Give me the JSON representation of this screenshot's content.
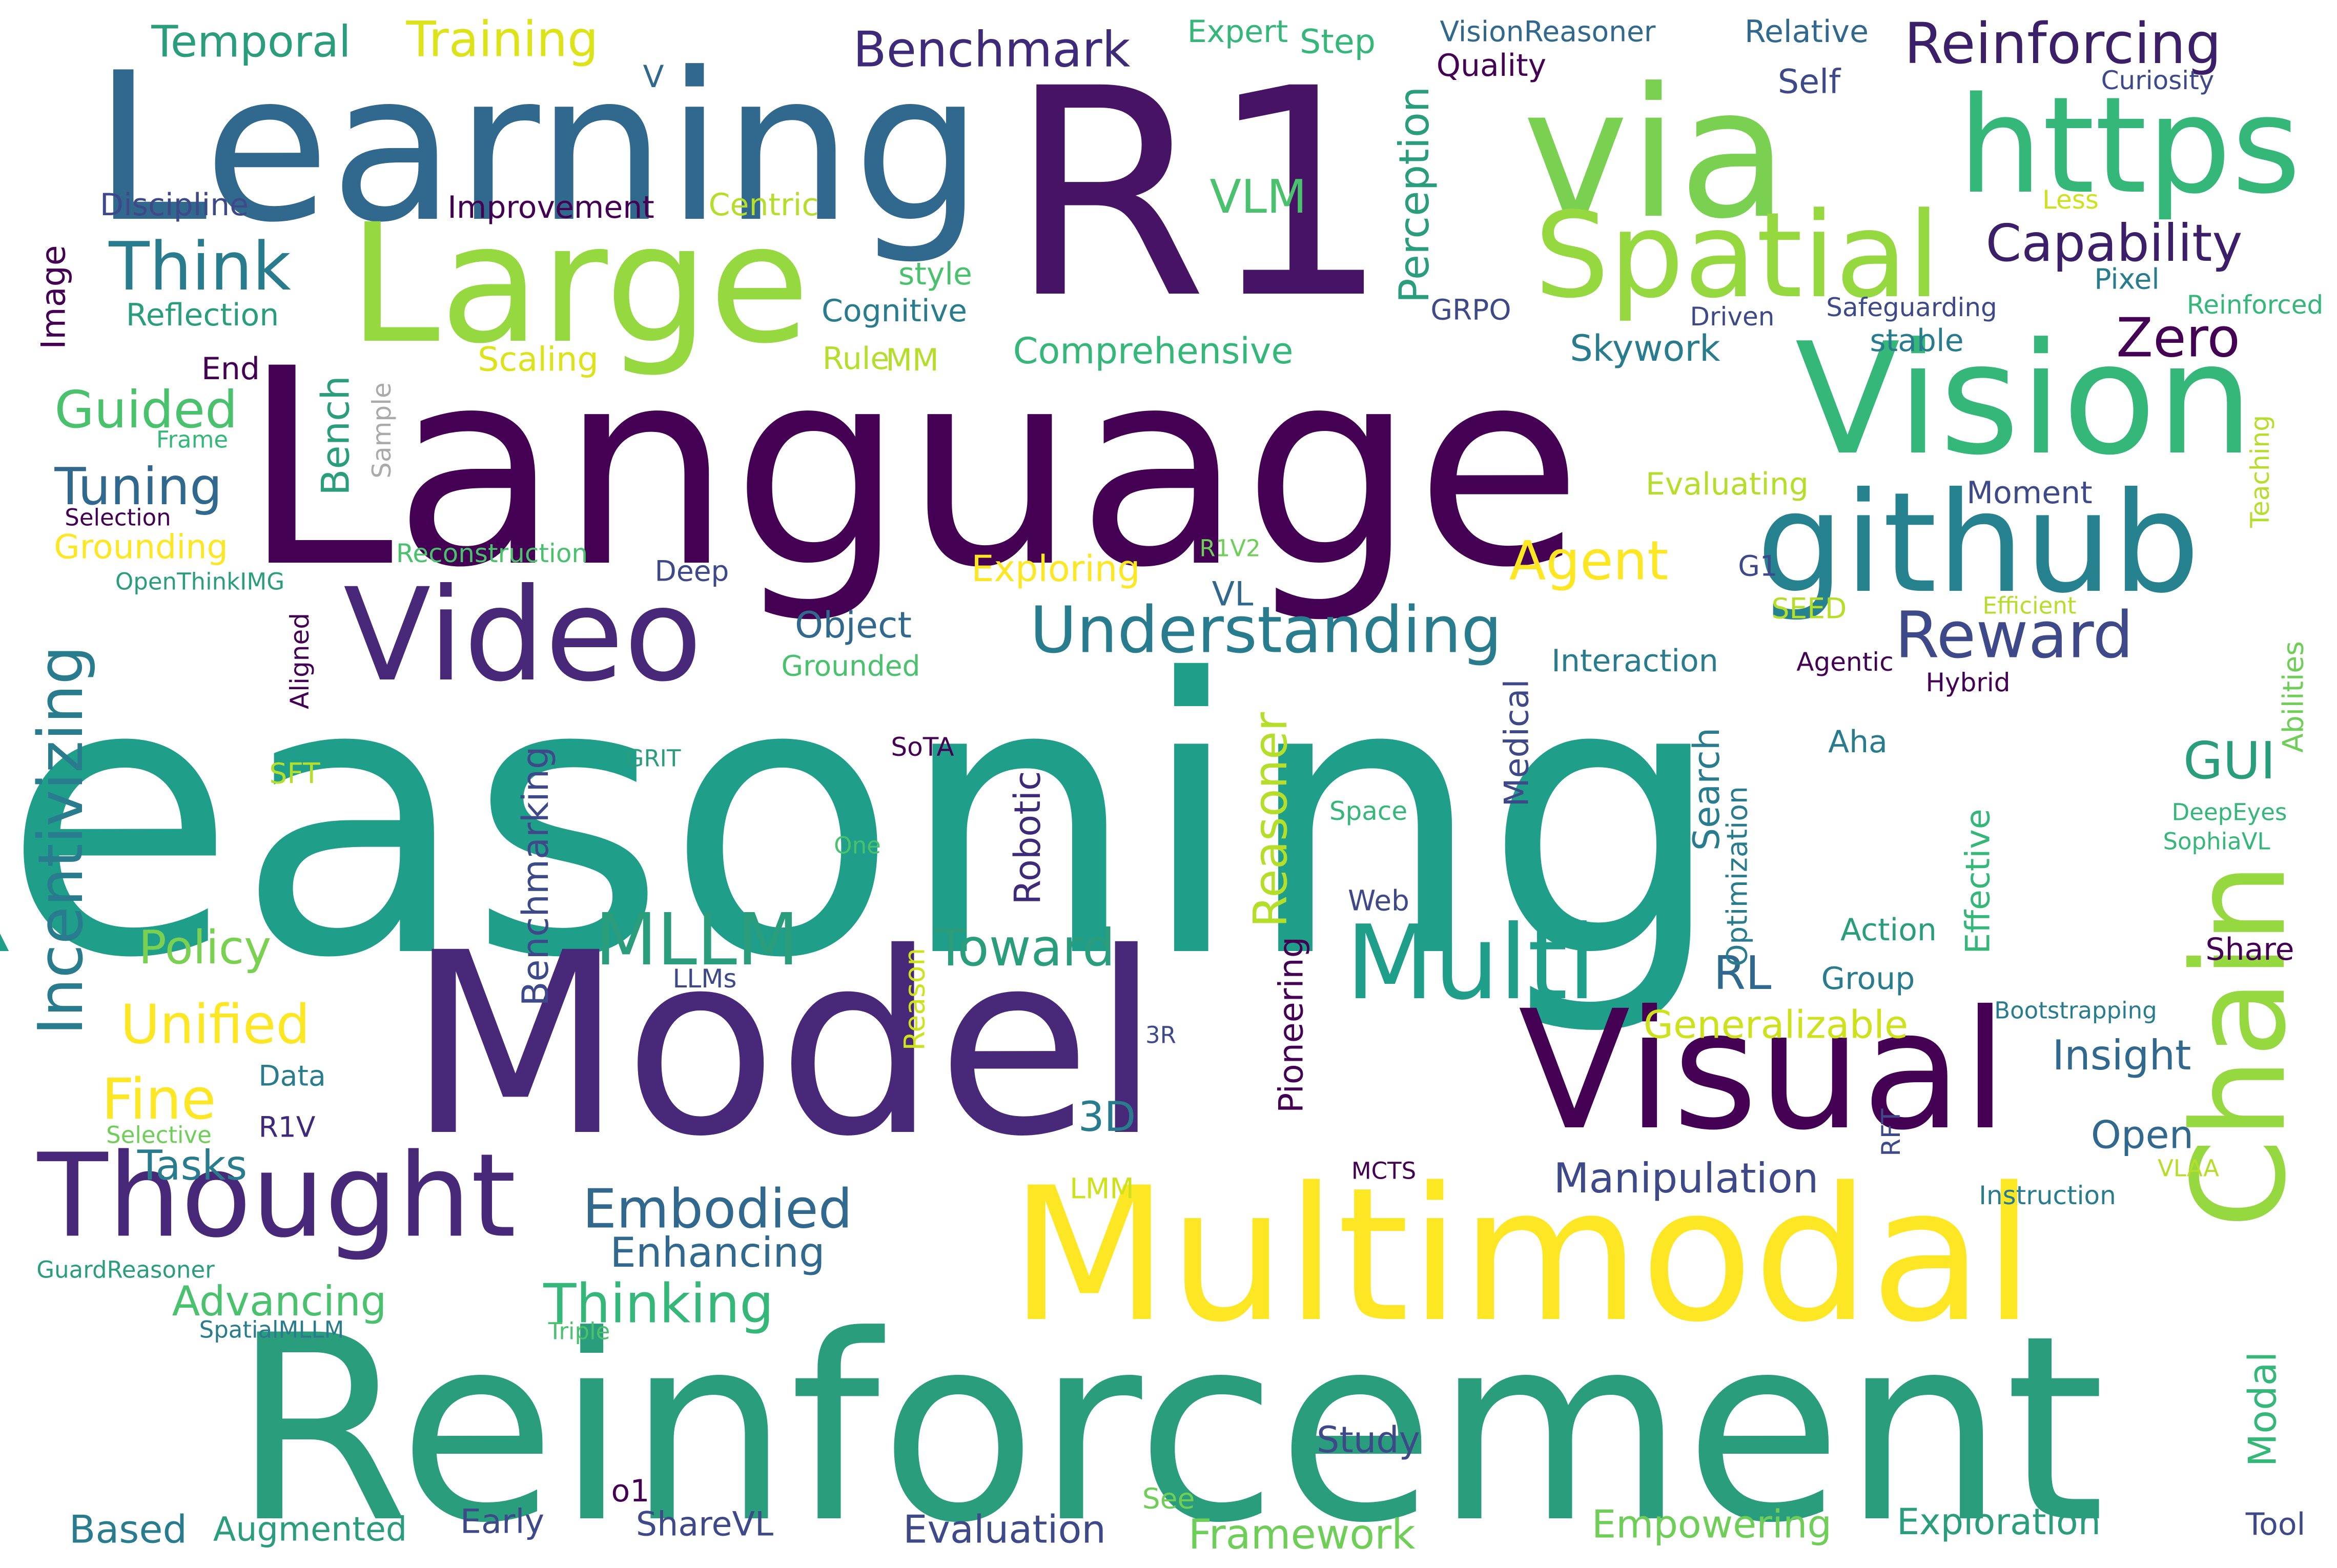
{
  "palette": {
    "dark_purple": "#440154",
    "purple": "#482878",
    "indigo": "#3e4989",
    "blue": "#31688e",
    "teal_blue": "#26828e",
    "teal": "#1f9e89",
    "green": "#35b779",
    "light_green": "#6ece58",
    "lime": "#b5de2b",
    "yellow": "#fde725"
  },
  "words": [
    {
      "text": "Reasoning",
      "color": "#1f9e89"
    },
    {
      "text": "Language",
      "color": "#440154"
    },
    {
      "text": "Model",
      "color": "#482878"
    },
    {
      "text": "Reinforcement",
      "color": "#2a9d7c"
    },
    {
      "text": "Multimodal",
      "color": "#fde725"
    },
    {
      "text": "R1",
      "color": "#471465"
    },
    {
      "text": "Learning",
      "color": "#31688e"
    },
    {
      "text": "via",
      "color": "#7ad151"
    },
    {
      "text": "https",
      "color": "#35b779"
    },
    {
      "text": "Vision",
      "color": "#35b779"
    },
    {
      "text": "Visual",
      "color": "#440154"
    },
    {
      "text": "Large",
      "color": "#95d840"
    },
    {
      "text": "Spatial",
      "color": "#95d840"
    },
    {
      "text": "github",
      "color": "#26828e"
    },
    {
      "text": "Video",
      "color": "#482878"
    },
    {
      "text": "Chain",
      "color": "#95d840"
    },
    {
      "text": "Thought",
      "color": "#482878"
    },
    {
      "text": "Multi",
      "color": "#1f9e89"
    },
    {
      "text": "MLLM",
      "color": "#2a9d7c"
    },
    {
      "text": "Understanding",
      "color": "#287c8e"
    },
    {
      "text": "Reward",
      "color": "#3e4989"
    },
    {
      "text": "Incentivizing",
      "color": "#287c8e"
    },
    {
      "text": "Think",
      "color": "#287c8e"
    },
    {
      "text": "Training",
      "color": "#dce319"
    },
    {
      "text": "Temporal",
      "color": "#2a9d7c"
    },
    {
      "text": "Benchmark",
      "color": "#3e2a78"
    },
    {
      "text": "Reinforcing",
      "color": "#3b1f68"
    },
    {
      "text": "Capability",
      "color": "#3b1f68"
    },
    {
      "text": "Embodied",
      "color": "#31688e"
    },
    {
      "text": "Thinking",
      "color": "#35b779"
    },
    {
      "text": "Zero",
      "color": "#440154"
    },
    {
      "text": "Agent",
      "color": "#fde725"
    },
    {
      "text": "Unified",
      "color": "#fde725"
    },
    {
      "text": "Fine",
      "color": "#fde725"
    },
    {
      "text": "Guided",
      "color": "#4ac16d"
    },
    {
      "text": "Tuning",
      "color": "#31688e"
    },
    {
      "text": "Policy",
      "color": "#7ad151"
    },
    {
      "text": "Toward",
      "color": "#2a9d7c"
    },
    {
      "text": "GUI",
      "color": "#2a9d7c"
    },
    {
      "text": "VLM",
      "color": "#4ac16d"
    },
    {
      "text": "Perception",
      "color": "#2a9d7c"
    },
    {
      "text": "Reasoner",
      "color": "#b5de2b"
    },
    {
      "text": "Generalizable",
      "color": "#cde11d"
    },
    {
      "text": "Manipulation",
      "color": "#3e4989"
    },
    {
      "text": "Enhancing",
      "color": "#31688e"
    },
    {
      "text": "Advancing",
      "color": "#4ac16d"
    },
    {
      "text": "Tasks",
      "color": "#287c8e"
    },
    {
      "text": "3D",
      "color": "#287c8e"
    },
    {
      "text": "RL",
      "color": "#31688e"
    },
    {
      "text": "Insight",
      "color": "#31688e"
    },
    {
      "text": "Open",
      "color": "#31688e"
    },
    {
      "text": "Framework",
      "color": "#6ece58"
    },
    {
      "text": "Evaluation",
      "color": "#3e4989"
    },
    {
      "text": "Empowering",
      "color": "#6ece58"
    },
    {
      "text": "Exploration",
      "color": "#2a9d7c"
    },
    {
      "text": "Study",
      "color": "#3e4989"
    },
    {
      "text": "Based",
      "color": "#287c8e"
    },
    {
      "text": "Augmented",
      "color": "#2a9d7c"
    },
    {
      "text": "Early",
      "color": "#3e4989"
    },
    {
      "text": "ShareVL",
      "color": "#3e4989"
    },
    {
      "text": "o1",
      "color": "#440154"
    },
    {
      "text": "See",
      "color": "#6ece58"
    },
    {
      "text": "Tool",
      "color": "#3e4989"
    },
    {
      "text": "Modal",
      "color": "#35b779"
    },
    {
      "text": "Effective",
      "color": "#35b779"
    },
    {
      "text": "Benchmarking",
      "color": "#3e4989"
    },
    {
      "text": "Pioneering",
      "color": "#440154"
    },
    {
      "text": "Robotic",
      "color": "#3e2a78"
    },
    {
      "text": "Medical",
      "color": "#3e4989"
    },
    {
      "text": "Search",
      "color": "#287c8e"
    },
    {
      "text": "Optimization",
      "color": "#287c8e"
    },
    {
      "text": "Bench",
      "color": "#2a9d7c"
    },
    {
      "text": "Image",
      "color": "#440154"
    },
    {
      "text": "Sample",
      "color": "#aaaaaa"
    },
    {
      "text": "Aligned",
      "color": "#440154"
    },
    {
      "text": "Reason",
      "color": "#cde11d"
    },
    {
      "text": "Abilities",
      "color": "#6ece58"
    },
    {
      "text": "Teaching",
      "color": "#b5de2b"
    },
    {
      "text": "RFT",
      "color": "#3e4989"
    },
    {
      "text": "V",
      "color": "#31688e"
    },
    {
      "text": "Expert",
      "color": "#35b779"
    },
    {
      "text": "Step",
      "color": "#35b779"
    },
    {
      "text": "VisionReasoner",
      "color": "#31688e"
    },
    {
      "text": "Relative",
      "color": "#31688e"
    },
    {
      "text": "Quality",
      "color": "#440154"
    },
    {
      "text": "Self",
      "color": "#3e4989"
    },
    {
      "text": "Curiosity",
      "color": "#3e4989"
    },
    {
      "text": "Discipline",
      "color": "#3e4989"
    },
    {
      "text": "Improvement",
      "color": "#440154"
    },
    {
      "text": "Centric",
      "color": "#b5de2b"
    },
    {
      "text": "Less",
      "color": "#cde11d"
    },
    {
      "text": "Reflection",
      "color": "#2a9d7c"
    },
    {
      "text": "style",
      "color": "#4ac16d"
    },
    {
      "text": "Cognitive",
      "color": "#287c8e"
    },
    {
      "text": "Pixel",
      "color": "#287c8e"
    },
    {
      "text": "Reinforced",
      "color": "#35b779"
    },
    {
      "text": "GRPO",
      "color": "#3e4989"
    },
    {
      "text": "Driven",
      "color": "#3e4989"
    },
    {
      "text": "Safeguarding",
      "color": "#3e4989"
    },
    {
      "text": "End",
      "color": "#440154"
    },
    {
      "text": "Scaling",
      "color": "#dce319"
    },
    {
      "text": "Rule",
      "color": "#b5de2b"
    },
    {
      "text": "MM",
      "color": "#b5de2b"
    },
    {
      "text": "Comprehensive",
      "color": "#35b779"
    },
    {
      "text": "Skywork",
      "color": "#287c8e"
    },
    {
      "text": "stable",
      "color": "#287c8e"
    },
    {
      "text": "Frame",
      "color": "#35b779"
    },
    {
      "text": "Evaluating",
      "color": "#b5de2b"
    },
    {
      "text": "Moment",
      "color": "#3e4989"
    },
    {
      "text": "Selection",
      "color": "#440154"
    },
    {
      "text": "Grounding",
      "color": "#fde725"
    },
    {
      "text": "Reconstruction",
      "color": "#4ac16d"
    },
    {
      "text": "Exploring",
      "color": "#fde725"
    },
    {
      "text": "R1V2",
      "color": "#6ece58"
    },
    {
      "text": "G1",
      "color": "#3e4989"
    },
    {
      "text": "OpenThinkIMG",
      "color": "#2a9d7c"
    },
    {
      "text": "Deep",
      "color": "#3e4989"
    },
    {
      "text": "VL",
      "color": "#31688e"
    },
    {
      "text": "SEED",
      "color": "#b5de2b"
    },
    {
      "text": "Efficient",
      "color": "#b5de2b"
    },
    {
      "text": "Object",
      "color": "#31688e"
    },
    {
      "text": "Grounded",
      "color": "#4ac16d"
    },
    {
      "text": "Interaction",
      "color": "#287c8e"
    },
    {
      "text": "Agentic",
      "color": "#440154"
    },
    {
      "text": "Hybrid",
      "color": "#440154"
    },
    {
      "text": "Aha",
      "color": "#287c8e"
    },
    {
      "text": "GRIT",
      "color": "#2a9d7c"
    },
    {
      "text": "SoTA",
      "color": "#440154"
    },
    {
      "text": "SFT",
      "color": "#b5de2b"
    },
    {
      "text": "Space",
      "color": "#35b779"
    },
    {
      "text": "DeepEyes",
      "color": "#35b779"
    },
    {
      "text": "SophiaVL",
      "color": "#35b779"
    },
    {
      "text": "One",
      "color": "#4ac16d"
    },
    {
      "text": "Web",
      "color": "#3e4989"
    },
    {
      "text": "Action",
      "color": "#2a9d7c"
    },
    {
      "text": "Share",
      "color": "#440154"
    },
    {
      "text": "LLMs",
      "color": "#3e4989"
    },
    {
      "text": "Group",
      "color": "#287c8e"
    },
    {
      "text": "Bootstrapping",
      "color": "#287c8e"
    },
    {
      "text": "Data",
      "color": "#287c8e"
    },
    {
      "text": "3R",
      "color": "#3e4989"
    },
    {
      "text": "R1V",
      "color": "#3e2a78"
    },
    {
      "text": "Selective",
      "color": "#6ece58"
    },
    {
      "text": "LMM",
      "color": "#cde11d"
    },
    {
      "text": "MCTS",
      "color": "#440154"
    },
    {
      "text": "VLAA",
      "color": "#b5de2b"
    },
    {
      "text": "Instruction",
      "color": "#287c8e"
    },
    {
      "text": "GuardReasoner",
      "color": "#2a9d7c"
    },
    {
      "text": "SpatialMLLM",
      "color": "#287c8e"
    },
    {
      "text": "Triple",
      "color": "#4ac16d"
    }
  ]
}
